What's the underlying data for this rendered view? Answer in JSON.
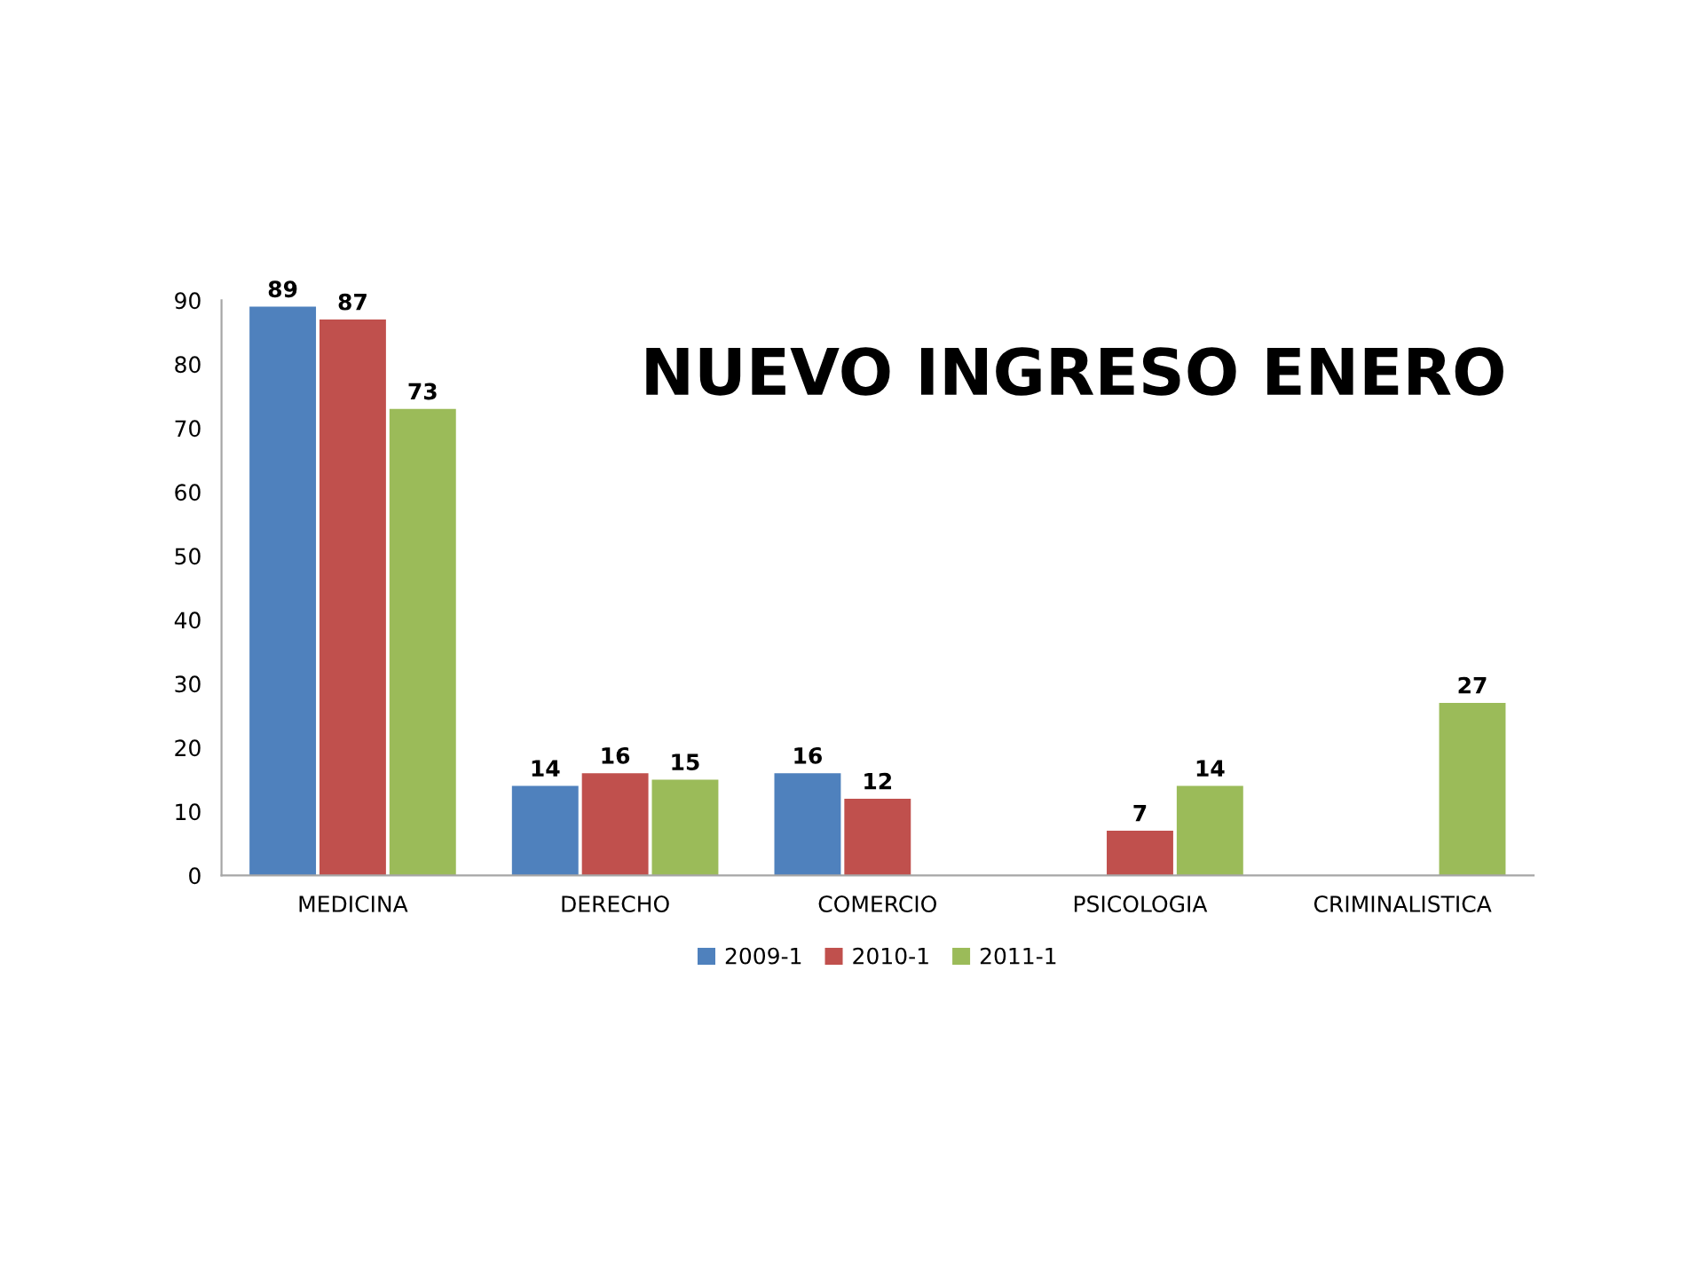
{
  "chart_data": {
    "type": "bar",
    "title": "NUEVO INGRESO ENERO",
    "categories": [
      "MEDICINA",
      "DERECHO",
      "COMERCIO",
      "PSICOLOGIA",
      "CRIMINALISTICA"
    ],
    "series": [
      {
        "name": "2009-1",
        "color": "#4f81bd",
        "values": [
          89,
          14,
          16,
          null,
          null
        ]
      },
      {
        "name": "2010-1",
        "color": "#c0504d",
        "values": [
          87,
          16,
          12,
          7,
          null
        ]
      },
      {
        "name": "2011-1",
        "color": "#9bbb59",
        "values": [
          73,
          15,
          null,
          14,
          27
        ]
      }
    ],
    "ylim": [
      0,
      90
    ],
    "yticks": [
      0,
      10,
      20,
      30,
      40,
      50,
      60,
      70,
      80,
      90
    ],
    "data_labels": true,
    "grid": false,
    "legend": "bottom"
  }
}
